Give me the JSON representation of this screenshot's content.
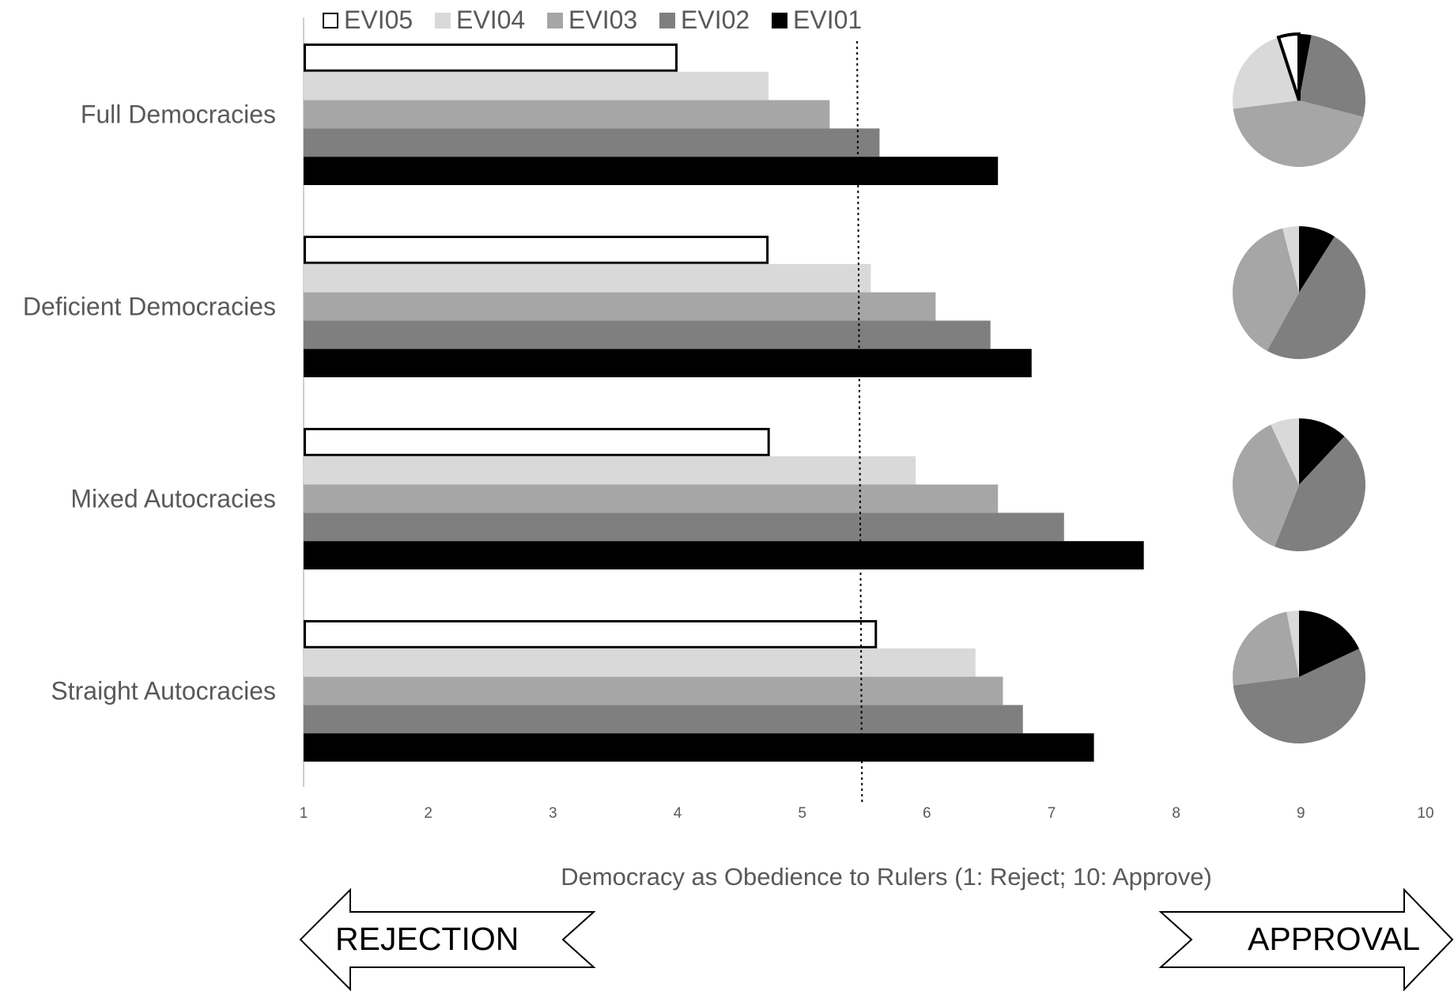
{
  "chart_data": {
    "type": "bar",
    "orientation": "horizontal",
    "categories": [
      "Full Democracies",
      "Deficient Democracies",
      "Mixed Autocracies",
      "Straight Autocracies"
    ],
    "series": [
      {
        "name": "EVI05",
        "color": "#ffffff",
        "outline": "#000000",
        "values": [
          4.0,
          4.73,
          4.74,
          5.6
        ]
      },
      {
        "name": "EVI04",
        "color": "#d9d9d9",
        "values": [
          4.73,
          5.55,
          5.91,
          6.39
        ]
      },
      {
        "name": "EVI03",
        "color": "#a6a6a6",
        "values": [
          5.22,
          6.07,
          6.57,
          6.61
        ]
      },
      {
        "name": "EVI02",
        "color": "#7f7f7f",
        "values": [
          5.62,
          6.51,
          7.1,
          6.77
        ]
      },
      {
        "name": "EVI01",
        "color": "#000000",
        "values": [
          6.57,
          6.84,
          7.74,
          7.34
        ]
      }
    ],
    "legend_order": [
      "EVI05",
      "EVI04",
      "EVI03",
      "EVI02",
      "EVI01"
    ],
    "legend_position": "top",
    "xlim": [
      1,
      10
    ],
    "xticks": [
      "1",
      "2",
      "3",
      "4",
      "5",
      "6",
      "7",
      "8",
      "9",
      "10"
    ],
    "xlabel": "Democracy as Obedience to Rulers (1: Reject; 10: Approve)",
    "reference_line": {
      "style": "dotted",
      "x_start": 5.44,
      "x_end": 5.48
    },
    "grid": false,
    "pies": [
      {
        "category": "Full Democracies",
        "slices": [
          {
            "series": "EVI01",
            "share": 0.03
          },
          {
            "series": "EVI02",
            "share": 0.26
          },
          {
            "series": "EVI03",
            "share": 0.44
          },
          {
            "series": "EVI04",
            "share": 0.22
          },
          {
            "series": "EVI05",
            "share": 0.05
          }
        ]
      },
      {
        "category": "Deficient Democracies",
        "slices": [
          {
            "series": "EVI01",
            "share": 0.09
          },
          {
            "series": "EVI02",
            "share": 0.49
          },
          {
            "series": "EVI03",
            "share": 0.38
          },
          {
            "series": "EVI04",
            "share": 0.04
          }
        ]
      },
      {
        "category": "Mixed Autocracies",
        "slices": [
          {
            "series": "EVI01",
            "share": 0.12
          },
          {
            "series": "EVI02",
            "share": 0.44
          },
          {
            "series": "EVI03",
            "share": 0.37
          },
          {
            "series": "EVI04",
            "share": 0.07
          }
        ]
      },
      {
        "category": "Straight Autocracies",
        "slices": [
          {
            "series": "EVI01",
            "share": 0.18
          },
          {
            "series": "EVI02",
            "share": 0.55
          },
          {
            "series": "EVI03",
            "share": 0.24
          },
          {
            "series": "EVI04",
            "share": 0.03
          }
        ]
      }
    ],
    "arrows": {
      "left": "REJECTION",
      "right": "APPROVAL"
    }
  }
}
